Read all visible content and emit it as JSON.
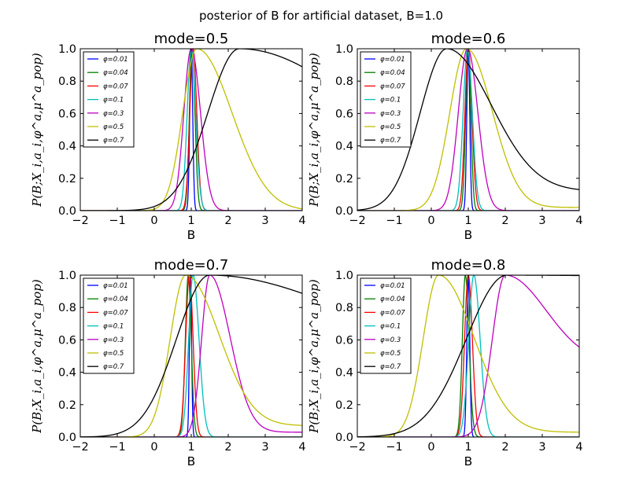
{
  "figure": {
    "suptitle": "posterior of B for artificial dataset, B=1.0"
  },
  "chart_data": [
    {
      "type": "line",
      "title": "mode=0.5",
      "xlabel": "B",
      "ylabel": "P(B;X_i,a_i,φ^a,μ^a_pop)",
      "xlim": [
        -2,
        4
      ],
      "ylim": [
        0,
        1.0
      ],
      "xticks": [
        -2,
        -1,
        0,
        1,
        2,
        3,
        4
      ],
      "yticks": [
        0.0,
        0.2,
        0.4,
        0.6,
        0.8,
        1.0
      ],
      "xtick_labels": [
        "−2",
        "−1",
        "0",
        "1",
        "2",
        "3",
        "4"
      ],
      "ytick_labels": [
        "0.0",
        "0.2",
        "0.4",
        "0.6",
        "0.8",
        "1.0"
      ],
      "grid": false,
      "legend_position": "upper-left",
      "series": [
        {
          "name": "φ=0.01",
          "color": "#0000ff",
          "peak": 1.0,
          "width_left": 0.04,
          "width_right": 0.04,
          "tail": 0.0
        },
        {
          "name": "φ=0.04",
          "color": "#008000",
          "peak": 1.02,
          "width_left": 0.07,
          "width_right": 0.08,
          "tail": 0.0
        },
        {
          "name": "φ=0.07",
          "color": "#ff0000",
          "peak": 1.05,
          "width_left": 0.09,
          "width_right": 0.1,
          "tail": 0.0
        },
        {
          "name": "φ=0.1",
          "color": "#00bfbf",
          "peak": 1.0,
          "width_left": 0.11,
          "width_right": 0.12,
          "tail": 0.0
        },
        {
          "name": "φ=0.3",
          "color": "#bf00bf",
          "peak": 1.0,
          "width_left": 0.2,
          "width_right": 0.25,
          "tail": 0.0
        },
        {
          "name": "φ=0.5",
          "color": "#bfbf00",
          "peak": 1.15,
          "width_left": 0.38,
          "width_right": 0.95,
          "tail": 0.0
        },
        {
          "name": "φ=0.7",
          "color": "#000000",
          "peak": 2.3,
          "width_left": 0.85,
          "width_right": 3.5,
          "tail": 0.0
        }
      ]
    },
    {
      "type": "line",
      "title": "mode=0.6",
      "xlabel": "B",
      "ylabel": "P(B;X_i,a_i,φ^a,μ^a_pop)",
      "xlim": [
        -2,
        4
      ],
      "ylim": [
        0,
        1.0
      ],
      "xticks": [
        -2,
        -1,
        0,
        1,
        2,
        3,
        4
      ],
      "yticks": [
        0.0,
        0.2,
        0.4,
        0.6,
        0.8,
        1.0
      ],
      "xtick_labels": [
        "−2",
        "−1",
        "0",
        "1",
        "2",
        "3",
        "4"
      ],
      "ytick_labels": [
        "0.0",
        "0.2",
        "0.4",
        "0.6",
        "0.8",
        "1.0"
      ],
      "grid": false,
      "legend_position": "upper-left",
      "series": [
        {
          "name": "φ=0.01",
          "color": "#0000ff",
          "peak": 1.0,
          "width_left": 0.04,
          "width_right": 0.04,
          "tail": 0.0
        },
        {
          "name": "φ=0.04",
          "color": "#008000",
          "peak": 1.0,
          "width_left": 0.07,
          "width_right": 0.07,
          "tail": 0.0
        },
        {
          "name": "φ=0.07",
          "color": "#ff0000",
          "peak": 1.0,
          "width_left": 0.09,
          "width_right": 0.1,
          "tail": 0.0
        },
        {
          "name": "φ=0.1",
          "color": "#00bfbf",
          "peak": 0.98,
          "width_left": 0.12,
          "width_right": 0.13,
          "tail": 0.0
        },
        {
          "name": "φ=0.3",
          "color": "#bf00bf",
          "peak": 0.98,
          "width_left": 0.25,
          "width_right": 0.28,
          "tail": 0.0
        },
        {
          "name": "φ=0.5",
          "color": "#bfbf00",
          "peak": 0.95,
          "width_left": 0.45,
          "width_right": 0.7,
          "tail": 0.02
        },
        {
          "name": "φ=0.7",
          "color": "#000000",
          "peak": 0.42,
          "width_left": 0.72,
          "width_right": 1.2,
          "tail": 0.12
        }
      ]
    },
    {
      "type": "line",
      "title": "mode=0.7",
      "xlabel": "B",
      "ylabel": "P(B;X_i,a_i,φ^a,μ^a_pop)",
      "xlim": [
        -2,
        4
      ],
      "ylim": [
        0,
        1.0
      ],
      "xticks": [
        -2,
        -1,
        0,
        1,
        2,
        3,
        4
      ],
      "yticks": [
        0.0,
        0.2,
        0.4,
        0.6,
        0.8,
        1.0
      ],
      "xtick_labels": [
        "−2",
        "−1",
        "0",
        "1",
        "2",
        "3",
        "4"
      ],
      "ytick_labels": [
        "0.0",
        "0.2",
        "0.4",
        "0.6",
        "0.8",
        "1.0"
      ],
      "grid": false,
      "legend_position": "upper-left",
      "series": [
        {
          "name": "φ=0.01",
          "color": "#0000ff",
          "peak": 0.98,
          "width_left": 0.03,
          "width_right": 0.03,
          "tail": 0.0
        },
        {
          "name": "φ=0.04",
          "color": "#008000",
          "peak": 0.92,
          "width_left": 0.08,
          "width_right": 0.08,
          "tail": 0.0
        },
        {
          "name": "φ=0.07",
          "color": "#ff0000",
          "peak": 0.95,
          "width_left": 0.1,
          "width_right": 0.1,
          "tail": 0.0
        },
        {
          "name": "φ=0.1",
          "color": "#00bfbf",
          "peak": 1.05,
          "width_left": 0.12,
          "width_right": 0.16,
          "tail": 0.0
        },
        {
          "name": "φ=0.3",
          "color": "#bf00bf",
          "peak": 1.5,
          "width_left": 0.22,
          "width_right": 0.55,
          "tail": 0.03
        },
        {
          "name": "φ=0.5",
          "color": "#bfbf00",
          "peak": 0.85,
          "width_left": 0.42,
          "width_right": 0.9,
          "tail": 0.07
        },
        {
          "name": "φ=0.7",
          "color": "#000000",
          "peak": 1.5,
          "width_left": 0.9,
          "width_right": 3.5,
          "tail": 0.5
        }
      ]
    },
    {
      "type": "line",
      "title": "mode=0.8",
      "xlabel": "B",
      "ylabel": "P(B;X_i,a_i,φ^a,μ^a_pop)",
      "xlim": [
        -2,
        4
      ],
      "ylim": [
        0,
        1.0
      ],
      "xticks": [
        -2,
        -1,
        0,
        1,
        2,
        3,
        4
      ],
      "yticks": [
        0.0,
        0.2,
        0.4,
        0.6,
        0.8,
        1.0
      ],
      "xtick_labels": [
        "−2",
        "−1",
        "0",
        "1",
        "2",
        "3",
        "4"
      ],
      "ytick_labels": [
        "0.0",
        "0.2",
        "0.4",
        "0.6",
        "0.8",
        "1.0"
      ],
      "grid": false,
      "legend_position": "upper-left",
      "series": [
        {
          "name": "φ=0.01",
          "color": "#0000ff",
          "peak": 1.0,
          "width_left": 0.04,
          "width_right": 0.04,
          "tail": 0.0
        },
        {
          "name": "φ=0.04",
          "color": "#008000",
          "peak": 0.92,
          "width_left": 0.08,
          "width_right": 0.1,
          "tail": 0.0
        },
        {
          "name": "φ=0.07",
          "color": "#ff0000",
          "peak": 1.0,
          "width_left": 0.1,
          "width_right": 0.11,
          "tail": 0.0
        },
        {
          "name": "φ=0.1",
          "color": "#00bfbf",
          "peak": 1.15,
          "width_left": 0.14,
          "width_right": 0.17,
          "tail": 0.0
        },
        {
          "name": "φ=0.3",
          "color": "#bf00bf",
          "peak": 2.0,
          "width_left": 0.35,
          "width_right": 1.1,
          "tail": 0.45
        },
        {
          "name": "φ=0.5",
          "color": "#bfbf00",
          "peak": 0.2,
          "width_left": 0.42,
          "width_right": 0.95,
          "tail": 0.03
        },
        {
          "name": "φ=0.7",
          "color": "#000000",
          "peak": 2.05,
          "width_left": 1.1,
          "width_right": 6.0,
          "tail": 0.95
        }
      ]
    }
  ]
}
